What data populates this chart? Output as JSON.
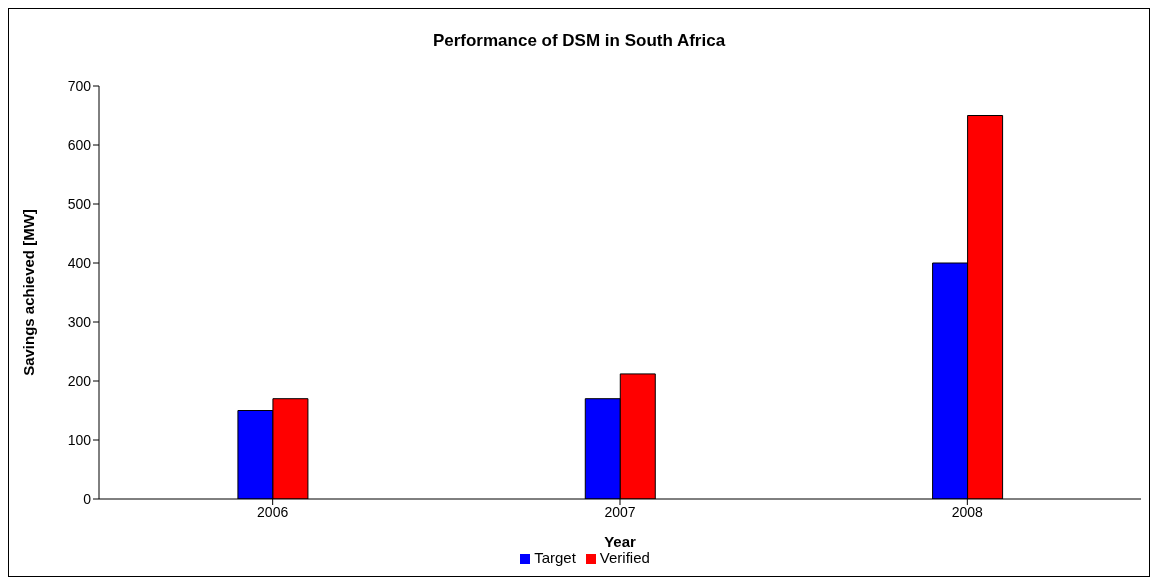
{
  "chart_data": {
    "type": "bar",
    "title": "Performance of DSM in South Africa",
    "xlabel": "Year",
    "ylabel": "Savings achieved [MW]",
    "categories": [
      "2006",
      "2007",
      "2008"
    ],
    "series": [
      {
        "name": "Target",
        "color": "#0000ff",
        "values": [
          150,
          170,
          400
        ]
      },
      {
        "name": "Verified",
        "color": "#ff0000",
        "values": [
          170,
          212,
          650
        ]
      }
    ],
    "ylim": [
      0,
      700
    ],
    "yticks": [
      0,
      100,
      200,
      300,
      400,
      500,
      600,
      700
    ],
    "grid": false,
    "legend": "bottom"
  }
}
